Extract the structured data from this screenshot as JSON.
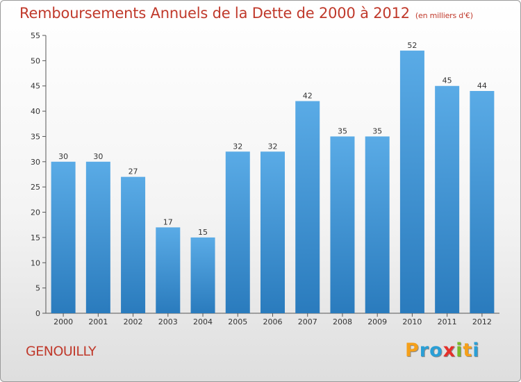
{
  "header": {
    "title": "Remboursements Annuels de la Dette de 2000 à 2012",
    "unit": "(en milliers d'€)"
  },
  "footer": {
    "place": "GENOUILLY",
    "logo": [
      "P",
      "r",
      "o",
      "x",
      "i",
      "t",
      "i"
    ]
  },
  "colors": {
    "title": "#c0392b",
    "bar_top": "#5aabe6",
    "bar_bottom": "#2a7bbd",
    "logo": [
      "#f5a01a",
      "#2a9fd6",
      "#2a9fd6",
      "#e5302a",
      "#7ab929",
      "#f5a01a",
      "#2a9fd6"
    ]
  },
  "chart_data": {
    "type": "bar",
    "title": "Remboursements Annuels de la Dette de 2000 à 2012",
    "subtitle": "(en milliers d'€)",
    "categories": [
      "2000",
      "2001",
      "2002",
      "2003",
      "2004",
      "2005",
      "2006",
      "2007",
      "2008",
      "2009",
      "2010",
      "2011",
      "2012"
    ],
    "values": [
      30,
      30,
      27,
      17,
      15,
      32,
      32,
      42,
      35,
      35,
      52,
      45,
      44
    ],
    "ylim": [
      0,
      55
    ],
    "yticks": [
      0,
      5,
      10,
      15,
      20,
      25,
      30,
      35,
      40,
      45,
      50,
      55
    ],
    "grid": false,
    "data_labels": true
  }
}
